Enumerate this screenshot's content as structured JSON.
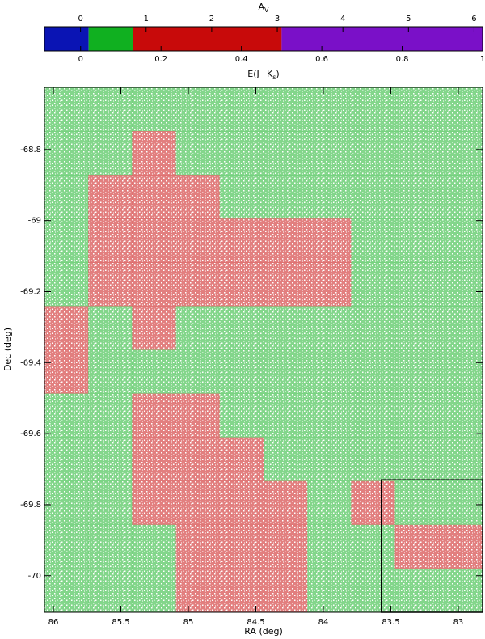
{
  "chart_data": {
    "type": "heatmap",
    "xlabel": "RA (deg)",
    "ylabel": "Dec (deg)",
    "xlim": [
      86.066,
      82.82
    ],
    "ylim": [
      -70.103,
      -68.625
    ],
    "xticks": [
      86,
      85.5,
      85,
      84.5,
      84,
      83.5,
      83
    ],
    "yticks": [
      -70,
      -69.8,
      -69.6,
      -69.4,
      -69.2,
      -69,
      -68.8
    ],
    "values": [
      [
        0.1,
        0.12,
        0.12,
        0.1,
        0.1,
        0.08,
        0.08,
        0.06,
        0.04,
        0.03
      ],
      [
        0.1,
        0.12,
        0.14,
        0.12,
        0.1,
        0.08,
        0.05,
        0.03,
        0.02,
        0.02
      ],
      [
        0.12,
        0.14,
        0.15,
        0.14,
        0.12,
        0.1,
        0.06,
        0.05,
        0.08,
        0.05
      ],
      [
        0.1,
        0.14,
        0.16,
        0.2,
        0.18,
        0.2,
        0.16,
        0.1,
        0.08,
        0.1
      ],
      [
        0.12,
        0.14,
        0.18,
        0.22,
        0.18,
        0.2,
        0.18,
        0.08,
        0.06,
        0.1
      ],
      [
        0.15,
        0.12,
        0.14,
        0.12,
        0.12,
        0.1,
        0.08,
        0.05,
        0.03,
        0.04
      ],
      [
        0.14,
        0.1,
        0.1,
        0.1,
        0.08,
        0.06,
        0.06,
        0.05,
        0.04,
        0.03
      ],
      [
        0.08,
        0.1,
        0.14,
        0.18,
        0.12,
        0.08,
        0.1,
        0.08,
        0.06,
        0.05
      ],
      [
        0.06,
        0.05,
        0.16,
        0.22,
        0.14,
        0.1,
        0.12,
        0.08,
        0.06,
        0.06
      ],
      [
        0.07,
        0.08,
        0.14,
        0.16,
        0.18,
        0.14,
        0.12,
        0.15,
        0.12,
        0.1
      ],
      [
        0.08,
        0.1,
        0.12,
        0.16,
        0.15,
        0.14,
        0.1,
        0.1,
        0.15,
        0.14
      ],
      [
        0.05,
        0.08,
        0.12,
        0.18,
        0.2,
        0.16,
        0.1,
        0.08,
        0.05,
        0.06
      ]
    ],
    "box": {
      "ra": [
        83.57,
        82.82
      ],
      "dec": [
        -69.73,
        -70.103
      ]
    },
    "colorbar": {
      "top_label": [
        "A",
        "V"
      ],
      "bottom_label": [
        "E(J−K",
        "s",
        ")"
      ],
      "xlim": [
        -0.09,
        1.0
      ],
      "x2lim": [
        -0.55,
        6.13
      ],
      "xticks": [
        0,
        0.2,
        0.4,
        0.6,
        0.8,
        1
      ],
      "x2ticks": [
        0,
        1,
        2,
        3,
        4,
        5,
        6
      ],
      "bins": [
        -0.09,
        0.02,
        0.13,
        0.5,
        1.0
      ],
      "colors": [
        "#0a14b4",
        "#10b020",
        "#c80a0a",
        "#7a10c8"
      ]
    }
  }
}
